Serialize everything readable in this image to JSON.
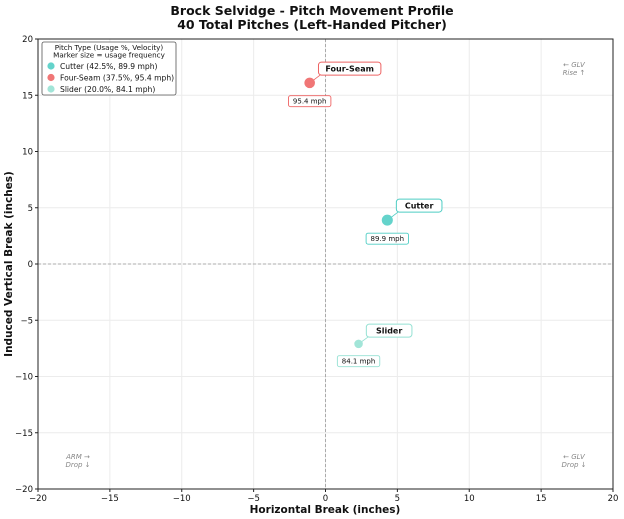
{
  "chart_data": {
    "type": "scatter",
    "title": "Brock Selvidge - Pitch Movement Profile",
    "subtitle": "40 Total Pitches (Left-Handed Pitcher)",
    "xlabel": "Horizontal Break (inches)",
    "ylabel": "Induced Vertical Break (inches)",
    "xlim": [
      -20,
      20
    ],
    "ylim": [
      -20,
      20
    ],
    "xticks": [
      -20,
      -15,
      -10,
      -5,
      0,
      5,
      10,
      15,
      20
    ],
    "yticks": [
      -20,
      -15,
      -10,
      -5,
      0,
      5,
      10,
      15,
      20
    ],
    "grid": true,
    "reference_lines": [
      {
        "axis": "x",
        "value": 0
      },
      {
        "axis": "y",
        "value": 0
      }
    ],
    "legend": {
      "placement": "top-left",
      "title_lines": [
        "Pitch Type (Usage %, Velocity)",
        "Marker size = usage frequency"
      ]
    },
    "series": [
      {
        "name": "Cutter",
        "legend_label": "Cutter (42.5%, 89.9 mph)",
        "x": 4.3,
        "y": 3.9,
        "usage_pct": 42.5,
        "velocity_label": "89.9 mph",
        "color": "#4ecdc4"
      },
      {
        "name": "Four-Seam",
        "legend_label": "Four-Seam (37.5%, 95.4 mph)",
        "x": -1.1,
        "y": 16.1,
        "usage_pct": 37.5,
        "velocity_label": "95.4 mph",
        "color": "#ee6363"
      },
      {
        "name": "Slider",
        "legend_label": "Slider (20.0%, 84.1 mph)",
        "x": 2.3,
        "y": -7.1,
        "usage_pct": 20.0,
        "velocity_label": "84.1 mph",
        "color": "#95e1d3"
      }
    ],
    "corner_notes": [
      {
        "corner": "top-right",
        "lines": [
          "← GLV",
          "Rise ↑"
        ]
      },
      {
        "corner": "bottom-left",
        "lines": [
          "ARM →",
          "Drop ↓"
        ]
      },
      {
        "corner": "bottom-right",
        "lines": [
          "← GLV",
          "Drop ↓"
        ]
      }
    ]
  }
}
